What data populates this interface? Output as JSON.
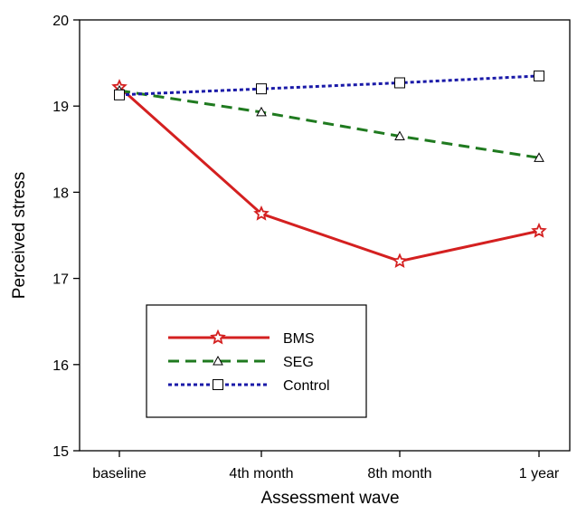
{
  "chart_data": {
    "type": "line",
    "xlabel": "Assessment wave",
    "ylabel": "Perceived stress",
    "categories": [
      "baseline",
      "4th month",
      "8th month",
      "1 year"
    ],
    "ylim": [
      15,
      20
    ],
    "yticks": [
      "15",
      "16",
      "17",
      "18",
      "19",
      "20"
    ],
    "grid": false,
    "legend_position": "bottom-left",
    "series": [
      {
        "name": "BMS",
        "values": [
          19.22,
          17.75,
          17.2,
          17.55
        ],
        "color": "#d42020",
        "dash": "solid",
        "marker": "star"
      },
      {
        "name": "SEG",
        "values": [
          19.18,
          18.93,
          18.65,
          18.4
        ],
        "color": "#1f7a1f",
        "dash": "dashed",
        "marker": "triangle"
      },
      {
        "name": "Control",
        "values": [
          19.13,
          19.2,
          19.27,
          19.35
        ],
        "color": "#1a1aa8",
        "dash": "dotted",
        "marker": "square"
      }
    ]
  }
}
